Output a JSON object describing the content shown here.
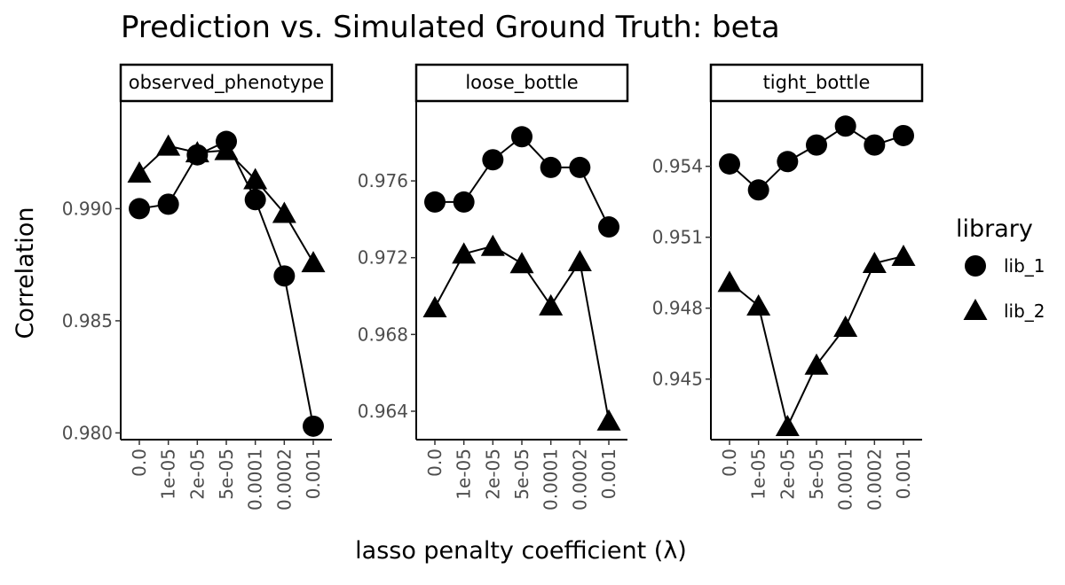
{
  "chart_data": {
    "type": "scatter",
    "title": "Prediction vs. Simulated Ground Truth: beta",
    "xlabel": "lasso penalty coefficient (λ)",
    "ylabel": "Correlation",
    "categories": [
      "0.0",
      "1e-05",
      "2e-05",
      "5e-05",
      "0.0001",
      "0.0002",
      "0.001"
    ],
    "grid": false,
    "legend": {
      "title": "library",
      "position": "right",
      "entries": [
        {
          "label": "lib_1",
          "marker": "circle"
        },
        {
          "label": "lib_2",
          "marker": "triangle"
        }
      ]
    },
    "panels": [
      {
        "name": "observed_phenotype",
        "ylim": [
          0.9797,
          0.9948
        ],
        "yticks": [
          0.98,
          0.985,
          0.99
        ],
        "ytick_labels": [
          "0.980",
          "0.985",
          "0.990"
        ],
        "series": [
          {
            "name": "lib_1",
            "values": [
              0.99,
              0.9902,
              0.9924,
              0.993,
              0.9904,
              0.987,
              0.9803
            ]
          },
          {
            "name": "lib_2",
            "values": [
              0.9916,
              0.9928,
              0.9925,
              0.9926,
              0.9913,
              0.9898,
              0.9876
            ]
          }
        ]
      },
      {
        "name": "loose_bottle",
        "ylim": [
          0.96252,
          0.98016
        ],
        "yticks": [
          0.964,
          0.968,
          0.972,
          0.976
        ],
        "ytick_labels": [
          "0.964",
          "0.968",
          "0.972",
          "0.976"
        ],
        "series": [
          {
            "name": "lib_1",
            "values": [
              0.9749,
              0.9749,
              0.9771,
              0.9783,
              0.9767,
              0.9767,
              0.9736
            ]
          },
          {
            "name": "lib_2",
            "values": [
              0.9694,
              0.9722,
              0.9726,
              0.9717,
              0.9695,
              0.9718,
              0.9635
            ]
          }
        ]
      },
      {
        "name": "tight_bottle",
        "ylim": [
          0.94244,
          0.95676
        ],
        "yticks": [
          0.945,
          0.948,
          0.951,
          0.954
        ],
        "ytick_labels": [
          "0.945",
          "0.948",
          "0.951",
          "0.954"
        ],
        "series": [
          {
            "name": "lib_1",
            "values": [
              0.9541,
              0.953,
              0.9542,
              0.9549,
              0.9557,
              0.9549,
              0.9553
            ]
          },
          {
            "name": "lib_2",
            "values": [
              0.9491,
              0.9481,
              0.943,
              0.9456,
              0.9472,
              0.9499,
              0.9502
            ]
          }
        ]
      }
    ]
  }
}
